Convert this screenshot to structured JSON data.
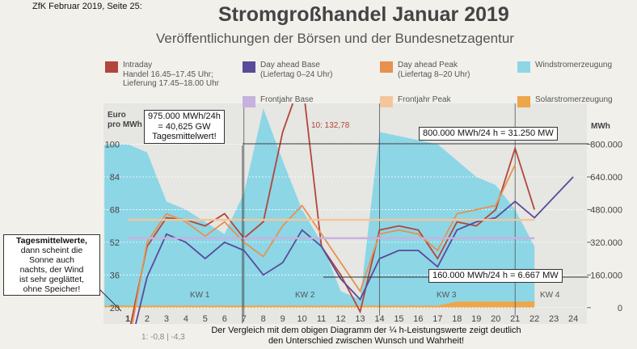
{
  "header": "ZfK Februar 2019, Seite 25:",
  "chart_data": {
    "type": "line",
    "title": "Stromgroßhandel Januar 2019",
    "subtitle": "Veröffentlichungen der Börsen und der Bundesnetzagentur",
    "ylabel": "Euro\npro MWh",
    "y2label": "MWh",
    "categories": [
      "1",
      "2",
      "3",
      "4",
      "5",
      "6",
      "7",
      "8",
      "9",
      "10",
      "11",
      "12",
      "13",
      "14",
      "15",
      "16",
      "17",
      "18",
      "19",
      "20",
      "21",
      "22",
      "23",
      "24"
    ],
    "ylim": [
      12,
      120
    ],
    "yticks": [
      20,
      36,
      52,
      68,
      84,
      100
    ],
    "y2lim": [
      -80000,
      1000000
    ],
    "y2ticks": [
      0,
      {
        "value": 160000,
        "label": "160.000"
      },
      {
        "value": 320000,
        "label": "320.000"
      },
      {
        "value": 480000,
        "label": "480.000"
      },
      {
        "value": 640000,
        "label": "640.000"
      },
      {
        "value": 800000,
        "label": "800.000"
      }
    ],
    "series": [
      {
        "name": "Windstromerzeugung",
        "color": "#8cd6e6",
        "axis": "y2",
        "kind": "area",
        "values": [
          800000,
          760000,
          520000,
          480000,
          420000,
          360000,
          560000,
          975000,
          720000,
          480000,
          320000,
          80000,
          40000,
          860000,
          840000,
          820000,
          800000,
          720000,
          640000,
          600000,
          480000,
          300000,
          null,
          null
        ]
      },
      {
        "name": "Solarstromerzeugung",
        "color": "#eea64a",
        "axis": "y2",
        "kind": "area",
        "values": [
          10000,
          10000,
          10000,
          10000,
          10000,
          10000,
          10000,
          10000,
          10000,
          10000,
          10000,
          10000,
          10000,
          10000,
          10000,
          10000,
          10000,
          30000,
          30000,
          30000,
          30000,
          30000,
          null,
          null
        ]
      },
      {
        "name": "Intraday\nHandel 16.45–17.45 Uhr;\nLieferung 17.45–18.00 Uhr",
        "color": "#b2463c",
        "values": [
          5,
          50,
          64,
          63,
          60,
          66,
          54,
          62,
          106,
          132.78,
          50,
          36,
          18,
          58,
          60,
          58,
          44,
          62,
          60,
          68,
          98,
          68,
          null,
          null
        ]
      },
      {
        "name": "Day ahead Base\n(Liefertag 0–24 Uhr)",
        "color": "#5a4a9a",
        "values": [
          -4.3,
          35,
          56,
          52,
          44,
          52,
          48,
          36,
          42,
          58,
          50,
          34,
          24,
          44,
          48,
          48,
          40,
          58,
          62,
          64,
          72,
          64,
          74,
          84
        ]
      },
      {
        "name": "Day ahead Peak\n(Liefertag 8–20 Uhr)",
        "color": "#e8914f",
        "values": [
          -0.8,
          52,
          66,
          62,
          55,
          62,
          52,
          45,
          60,
          70,
          56,
          42,
          28,
          56,
          58,
          56,
          48,
          66,
          68,
          70,
          90,
          null,
          null,
          null
        ]
      },
      {
        "name": "Frontjahr Base",
        "color": "#c6b2de",
        "values": [
          54,
          54,
          54,
          54,
          54,
          54,
          54,
          54,
          54,
          54,
          54,
          54,
          54,
          54,
          54,
          54,
          54,
          54,
          54,
          54,
          54,
          54,
          null,
          null
        ]
      },
      {
        "name": "Frontjahr Peak",
        "color": "#f4c69c",
        "values": [
          63,
          63,
          63,
          63,
          63,
          63,
          63,
          63,
          63,
          63,
          63,
          63,
          63,
          63,
          63,
          63,
          63,
          63,
          63,
          63,
          63,
          63,
          null,
          null
        ]
      }
    ],
    "annotations": [
      "10: 132,78",
      "1: -0,8 | -4,3",
      "KW 1",
      "KW 2",
      "KW 3",
      "KW 4"
    ]
  },
  "notes": {
    "wind_peak": "975.000 MWh/24h\n= 40,625 GW\nTagesmittelwert!",
    "upper_line": "800.000 MWh/24 h = 31.250 MW",
    "lower_line": "160.000 MWh/24 h = 6.667 MW",
    "left_bold": "Tagesmittelwerte,",
    "left_text": "dann scheint die\nSonne auch\nnachts, der Wind\nist sehr geglättet,\nohne Speicher!",
    "footer": "Der Vergleich mit dem obigen Diagramm der ¼ h-Leistungswerte zeigt deutlich\nden Unterschied zwischen Wunsch und Wahrheit!"
  }
}
